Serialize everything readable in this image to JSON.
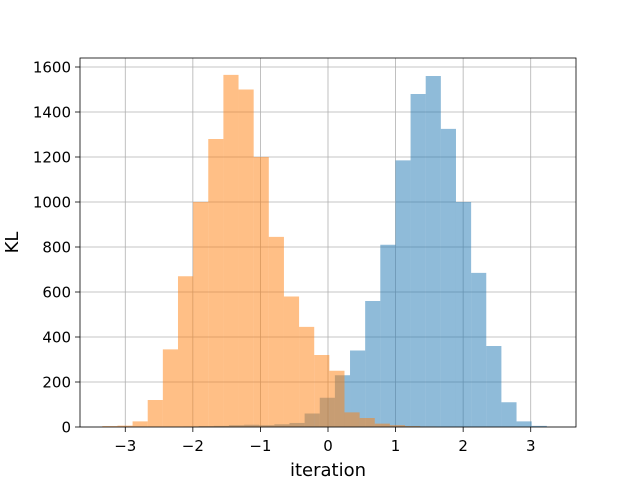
{
  "chart_data": {
    "type": "bar",
    "title": "",
    "xlabel": "iteration",
    "ylabel": "KL",
    "xlim": [
      -3.67,
      3.67
    ],
    "ylim": [
      0,
      1640
    ],
    "xticks": [
      -3,
      -2,
      -1,
      0,
      1,
      2,
      3
    ],
    "xtick_labels": [
      "−3",
      "−2",
      "−1",
      "0",
      "1",
      "2",
      "3"
    ],
    "yticks": [
      0,
      200,
      400,
      600,
      800,
      1000,
      1200,
      1400,
      1600
    ],
    "ytick_labels": [
      "0",
      "200",
      "400",
      "600",
      "800",
      "1000",
      "1200",
      "1400",
      "1600"
    ],
    "grid": true,
    "legend": "none",
    "bin_width": 0.224,
    "series": [
      {
        "color": "#1f77b4",
        "alpha": 0.5,
        "bin_starts": [
          -2.138,
          -1.914,
          -1.69,
          -1.466,
          -1.242,
          -1.018,
          -0.794,
          -0.57,
          -0.346,
          -0.122,
          0.102,
          0.326,
          0.55,
          0.774,
          0.998,
          1.222,
          1.446,
          1.67,
          1.894,
          2.118,
          2.342,
          2.566,
          2.79,
          3.014
        ],
        "values": [
          2,
          4,
          5,
          8,
          10,
          8,
          12,
          18,
          60,
          130,
          230,
          340,
          560,
          810,
          1185,
          1480,
          1560,
          1325,
          1000,
          685,
          360,
          110,
          25,
          5
        ]
      },
      {
        "color": "#ff7f0e",
        "alpha": 0.5,
        "bin_starts": [
          -3.34,
          -3.116,
          -2.892,
          -2.668,
          -2.444,
          -2.22,
          -1.996,
          -1.772,
          -1.548,
          -1.324,
          -1.1,
          -0.876,
          -0.652,
          -0.428,
          -0.204,
          0.02,
          0.244,
          0.468,
          0.692,
          0.916,
          1.14,
          1.364
        ],
        "values": [
          4,
          6,
          25,
          120,
          345,
          670,
          1000,
          1280,
          1565,
          1500,
          1200,
          845,
          580,
          445,
          320,
          250,
          65,
          40,
          15,
          8,
          4,
          2
        ]
      }
    ]
  }
}
